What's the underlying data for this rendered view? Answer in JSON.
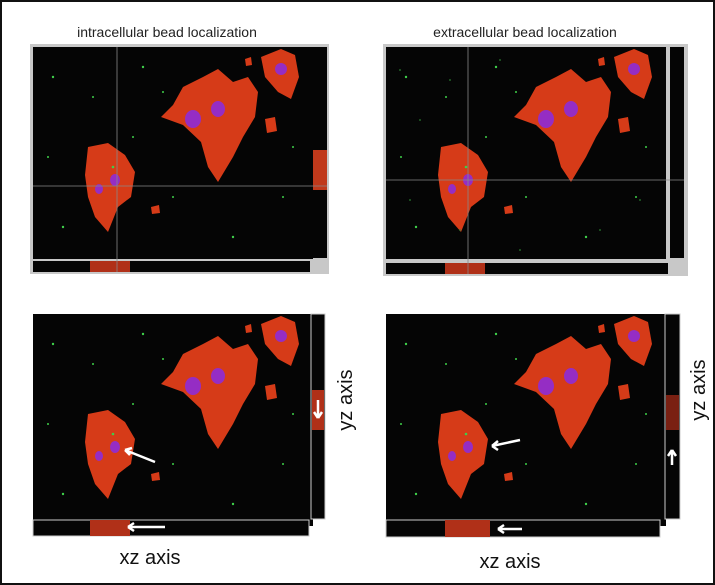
{
  "panels": {
    "top_left_title": "intracellular bead localization",
    "top_right_title": "extracellular bead localization",
    "bottom_left_xz": "xz axis",
    "bottom_left_yz": "yz axis",
    "bottom_right_xz": "xz axis",
    "bottom_right_yz": "yz axis"
  }
}
